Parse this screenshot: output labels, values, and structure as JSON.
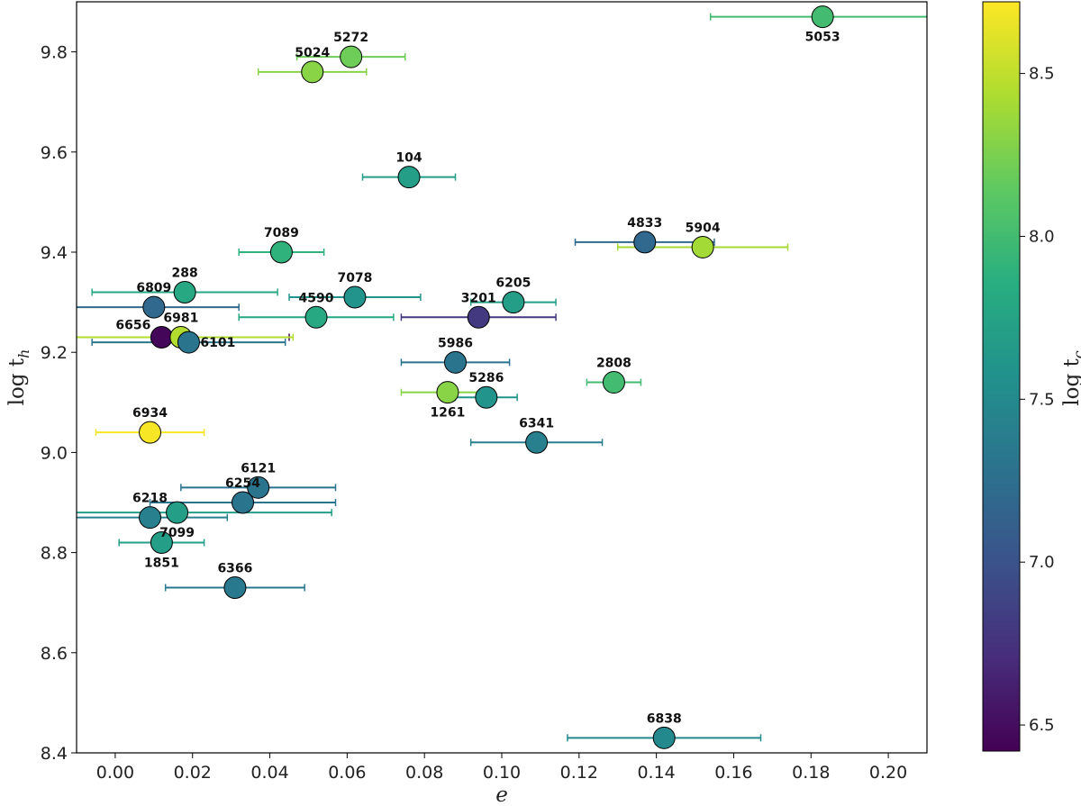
{
  "chart_data": {
    "type": "scatter",
    "title": "",
    "xlabel": "e",
    "ylabel_main": "log t",
    "ylabel_sub": "h",
    "colorbar_label_main": "log t",
    "colorbar_label_sub": "c",
    "xlim": [
      -0.01,
      0.21
    ],
    "ylim": [
      8.4,
      9.9
    ],
    "clim": [
      6.42,
      8.72
    ],
    "xticks": [
      "0.00",
      "0.02",
      "0.04",
      "0.06",
      "0.08",
      "0.10",
      "0.12",
      "0.14",
      "0.16",
      "0.18",
      "0.20"
    ],
    "yticks": [
      "8.4",
      "8.6",
      "8.8",
      "9.0",
      "9.2",
      "9.4",
      "9.6",
      "9.8"
    ],
    "cbticks": [
      "6.5",
      "7.0",
      "7.5",
      "8.0",
      "8.5"
    ],
    "grid": false,
    "colormap": "viridis",
    "points": [
      {
        "label": "5053",
        "x": 0.183,
        "y": 9.87,
        "xerr": 0.029,
        "c": 8.0,
        "label_pos": "below"
      },
      {
        "label": "5272",
        "x": 0.061,
        "y": 9.79,
        "xerr": 0.014,
        "c": 8.2,
        "label_pos": "above"
      },
      {
        "label": "5024",
        "x": 0.051,
        "y": 9.76,
        "xerr": 0.014,
        "c": 8.3,
        "label_pos": "above"
      },
      {
        "label": "104",
        "x": 0.076,
        "y": 9.55,
        "xerr": 0.012,
        "c": 7.7,
        "label_pos": "above"
      },
      {
        "label": "4833",
        "x": 0.137,
        "y": 9.42,
        "xerr": 0.018,
        "c": 7.2,
        "label_pos": "above"
      },
      {
        "label": "5904",
        "x": 0.152,
        "y": 9.41,
        "xerr": 0.022,
        "c": 8.4,
        "label_pos": "above"
      },
      {
        "label": "7089",
        "x": 0.043,
        "y": 9.4,
        "xerr": 0.011,
        "c": 7.9,
        "label_pos": "above"
      },
      {
        "label": "288",
        "x": 0.018,
        "y": 9.32,
        "xerr": 0.024,
        "c": 7.8,
        "label_pos": "above"
      },
      {
        "label": "7078",
        "x": 0.062,
        "y": 9.31,
        "xerr": 0.017,
        "c": 7.6,
        "label_pos": "above"
      },
      {
        "label": "6205",
        "x": 0.103,
        "y": 9.3,
        "xerr": 0.011,
        "c": 7.7,
        "label_pos": "above"
      },
      {
        "label": "6809",
        "x": 0.01,
        "y": 9.29,
        "xerr": 0.022,
        "c": 7.2,
        "label_pos": "above"
      },
      {
        "label": "4590",
        "x": 0.052,
        "y": 9.27,
        "xerr": 0.02,
        "c": 7.8,
        "label_pos": "above"
      },
      {
        "label": "3201",
        "x": 0.094,
        "y": 9.27,
        "xerr": 0.02,
        "c": 6.8,
        "label_pos": "above"
      },
      {
        "label": "6656",
        "x": 0.012,
        "y": 9.23,
        "xerr": 0.033,
        "c": 6.45,
        "label_pos": "left"
      },
      {
        "label": "6981",
        "x": 0.017,
        "y": 9.23,
        "xerr": 0.029,
        "c": 8.45,
        "label_pos": "above"
      },
      {
        "label": "6101",
        "x": 0.019,
        "y": 9.22,
        "xerr": 0.025,
        "c": 7.3,
        "label_pos": "right"
      },
      {
        "label": "5986",
        "x": 0.088,
        "y": 9.18,
        "xerr": 0.014,
        "c": 7.3,
        "label_pos": "above"
      },
      {
        "label": "2808",
        "x": 0.129,
        "y": 9.14,
        "xerr": 0.007,
        "c": 8.0,
        "label_pos": "above"
      },
      {
        "label": "1261",
        "x": 0.086,
        "y": 9.12,
        "xerr": 0.012,
        "c": 8.3,
        "label_pos": "below"
      },
      {
        "label": "5286",
        "x": 0.096,
        "y": 9.11,
        "xerr": 0.008,
        "c": 7.6,
        "label_pos": "above"
      },
      {
        "label": "6934",
        "x": 0.009,
        "y": 9.04,
        "xerr": 0.014,
        "c": 8.7,
        "label_pos": "above"
      },
      {
        "label": "6341",
        "x": 0.109,
        "y": 9.02,
        "xerr": 0.017,
        "c": 7.4,
        "label_pos": "above"
      },
      {
        "label": "6121",
        "x": 0.037,
        "y": 8.93,
        "xerr": 0.02,
        "c": 7.3,
        "label_pos": "above"
      },
      {
        "label": "6254",
        "x": 0.033,
        "y": 8.9,
        "xerr": 0.024,
        "c": 7.3,
        "label_pos": "above"
      },
      {
        "label": "6218",
        "x": 0.009,
        "y": 8.87,
        "xerr": 0.02,
        "c": 7.4,
        "label_pos": "above"
      },
      {
        "label": "7099",
        "x": 0.016,
        "y": 8.88,
        "xerr": 0.04,
        "c": 7.7,
        "label_pos": "below"
      },
      {
        "label": "1851",
        "x": 0.012,
        "y": 8.82,
        "xerr": 0.011,
        "c": 7.7,
        "label_pos": "below"
      },
      {
        "label": "6366",
        "x": 0.031,
        "y": 8.73,
        "xerr": 0.018,
        "c": 7.35,
        "label_pos": "above"
      },
      {
        "label": "6838",
        "x": 0.142,
        "y": 8.43,
        "xerr": 0.025,
        "c": 7.5,
        "label_pos": "above"
      }
    ]
  }
}
